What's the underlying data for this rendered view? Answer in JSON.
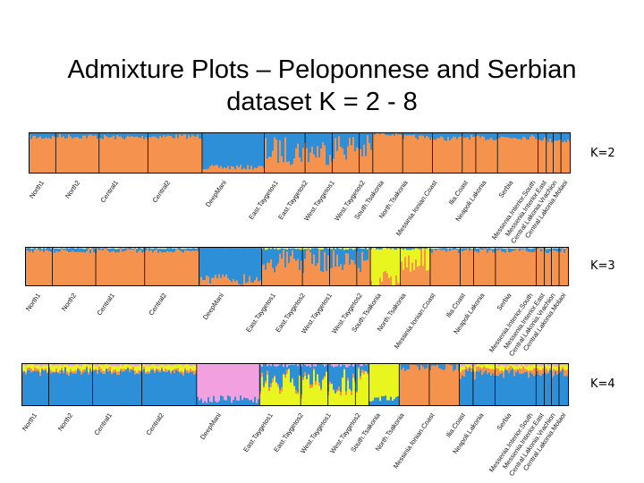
{
  "title_line1": "Admixture Plots – Peloponnese and Serbian",
  "title_line2": "dataset K = 2 - 8",
  "colors": {
    "orange": "#f5924e",
    "blue": "#2e8fd9",
    "yellow": "#e8f51f",
    "pink": "#f2a0e0",
    "divider": "#000000"
  },
  "panels": [
    {
      "k_label": "K=2",
      "population_labels": [
        "North1",
        "North2",
        "Central1",
        "Central2",
        "DeepMani",
        "East.Taygetos1",
        "East.Taygetos2",
        "West.Taygetos1",
        "West.Taygetos2",
        "South.Tsakonia",
        "North.Tsakonia",
        "Messinia.Ionian.Coast",
        "Ilia.Coast",
        "Neapoli.Lakonia",
        "Serbia",
        "Messenia.Interior.South",
        "Messenia.Interior.East",
        "Central.Lakonia.Vrachion",
        "Central.Lakonia.Molaoi"
      ]
    },
    {
      "k_label": "K=3",
      "population_labels": [
        "North1",
        "North2",
        "Central1",
        "Central2",
        "DeepMani",
        "East.Taygetos1",
        "East.Taygetos2",
        "West.Taygetos1",
        "West.Taygetos2",
        "South.Tsakonia",
        "North.Tsakonia",
        "Messinia.Ionian.Coast",
        "Ilia.Coast",
        "Neapoli.Lakonia",
        "Serbia",
        "Messenia.Interior.South",
        "Messenia.Interior.East",
        "Central.Lakonia.Vrachion",
        "Central.Lakonia.Molaoi"
      ]
    },
    {
      "k_label": "K=4",
      "population_labels": [
        "North1",
        "North2",
        "Central1",
        "Central2",
        "DeepMani",
        "East.Taygetos1",
        "East.Taygetos2",
        "West.Taygetos1",
        "West.Taygetos2",
        "South.Tsakonia",
        "North.Tsakonia",
        "Messinia.Ionian.Coast",
        "Ilia.Coast",
        "Neapoli.Lakonia",
        "Serbia",
        "Messenia.Interior.South",
        "Messenia.Interior.East",
        "Central.Lakonia.Vrachion",
        "Central.Lakonia.Molaoi"
      ]
    }
  ]
}
